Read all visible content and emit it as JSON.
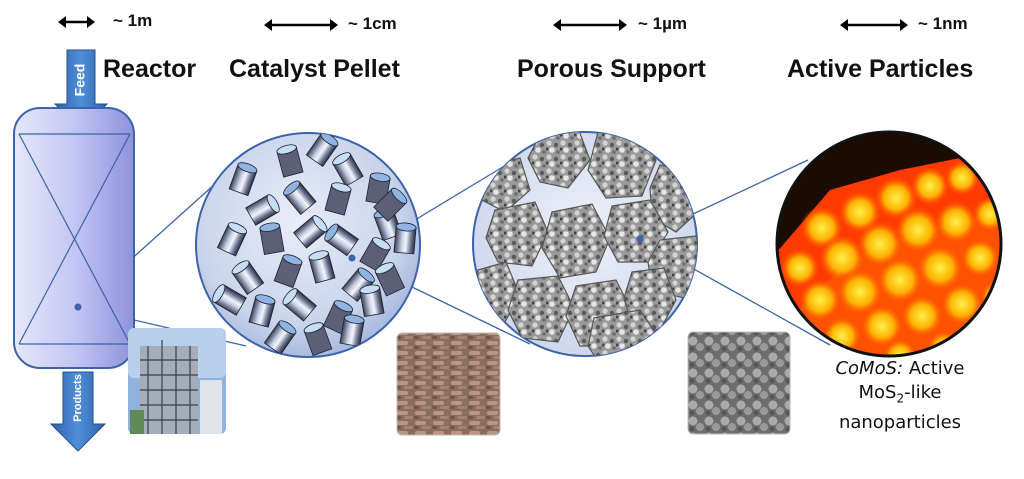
{
  "scales": {
    "reactor": "~ 1m",
    "pellet": "~ 1cm",
    "support": "~ 1µm",
    "particles": "~ 1nm"
  },
  "titles": {
    "reactor": "Reactor",
    "pellet": "Catalyst Pellet",
    "support": "Porous Support",
    "particles": "Active Particles"
  },
  "arrows": {
    "feed": "Feed",
    "products": "Products"
  },
  "caption": {
    "name": "CoMoS:",
    "word_active": "Active",
    "mos": "MoS",
    "sub": "2",
    "like": "-like",
    "last": "nanoparticles"
  },
  "colors": {
    "reactor_fill": "#b9bdf0",
    "zoom_lines": "#3d63a8",
    "arrow_blue": "#3a74c0",
    "heatmap_hot": "#ffd000",
    "heatmap_mid": "#ff3a00"
  }
}
